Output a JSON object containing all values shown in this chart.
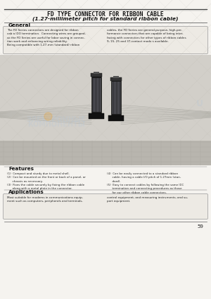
{
  "title_line1": "FD TYPE CONNECTOR FOR RIBBON CABLE",
  "title_line2": "(1.27-millimeter pitch for standard ribbon cable)",
  "section_general": "General",
  "general_text_left": "The FD Series connectors are designed for ribbon\ncab a IDO termination.  Connecting wires are grouped,\nso the FD Series are useful for labor saving in connec-\ntion work and enhancing wiring reliability.\nBeing compatible with 1.27-mm (standard) ribbon",
  "general_text_right": "cables, the FD Series are general-purpose, high-per-\nformance connectors that are capable of being inter-\nfacing with connectors for other types of ribbon cables\n9, 15, 25 and 37-contact mode s available.",
  "section_features": "Features",
  "feat_left": "(1)  Compact and sturdy due to metal shell.\n(2)  Can be mounted on the front or back of a panel, or\n      chassis as necessary.\n(3)  Fixes the cable securely by fixing the ribbon cable\n      along with a metal plate in the connector.",
  "feat_right": "(4)  Can be easily connected to a standard ribbon\n      cable, having a cable I/O pitch of 1.27mm (stan-\n      dard).\n(5)  Easy to connect cables by following the same IDC\n      termination and connecting procedures as those\n      for our other ribbon cable connectors.",
  "section_applications": "Applications",
  "app_left": "Most suitable for modems in communications equip-\nment such as computers, peripherals and terminals,",
  "app_right": "control equipment, and measuring instruments, and su-\nport equipment.",
  "page_number": "59",
  "page_bg": "#f5f3ef",
  "title_color": "#111111",
  "text_color": "#222222",
  "box_bg": "#edeae4",
  "box_edge": "#999999",
  "img_bg": "#cccac4",
  "img_bg2": "#b8b5ae",
  "connector_dark": "#1a1a1a",
  "connector_mid": "#555560",
  "connector_light": "#888890",
  "wmark_color": "#b8c8d8",
  "wmark_alpha": 0.3,
  "line_color": "#777777"
}
